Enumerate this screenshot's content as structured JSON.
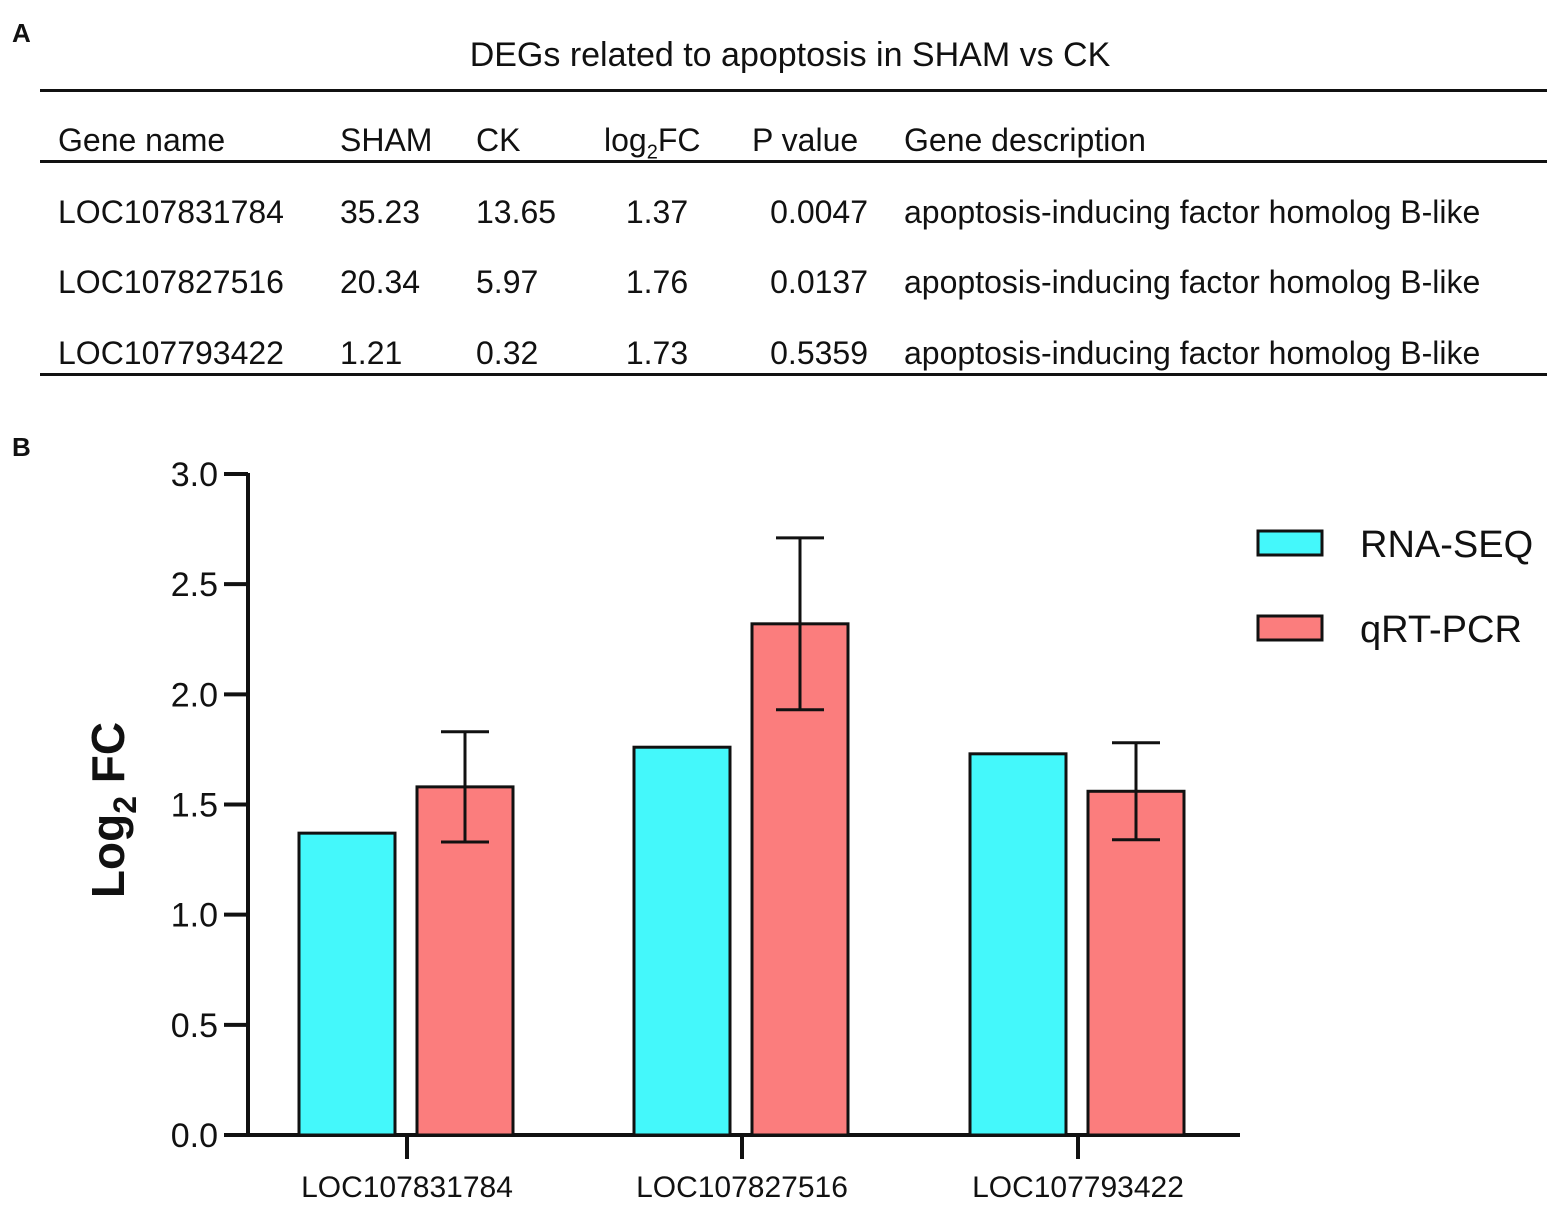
{
  "panel_a": {
    "label": "A",
    "title": "DEGs related to apoptosis in SHAM vs CK",
    "headers": {
      "gene": "Gene name",
      "sham": "SHAM",
      "ck": "CK",
      "fc_prefix": "log",
      "fc_sub": "2",
      "fc_suffix": "FC",
      "pvalue": "P value",
      "desc": "Gene description"
    },
    "rows": [
      {
        "gene": "LOC107831784",
        "sham": "35.23",
        "ck": "13.65",
        "fc": "1.37",
        "p": "0.0047",
        "desc": "apoptosis-inducing factor homolog B-like"
      },
      {
        "gene": "LOC107827516",
        "sham": "20.34",
        "ck": "5.97",
        "fc": "1.76",
        "p": "0.0137",
        "desc": "apoptosis-inducing factor homolog B-like"
      },
      {
        "gene": "LOC107793422",
        "sham": "1.21",
        "ck": "0.32",
        "fc": "1.73",
        "p": "0.5359",
        "desc": "apoptosis-inducing factor homolog B-like"
      }
    ]
  },
  "panel_b": {
    "label": "B"
  },
  "chart_data": {
    "type": "bar",
    "title": "",
    "xlabel": "",
    "ylabel_prefix": "Log",
    "ylabel_sub": "2",
    "ylabel_suffix": " FC",
    "ylim": [
      0,
      3.0
    ],
    "yticks": [
      "0.0",
      "0.5",
      "1.0",
      "1.5",
      "2.0",
      "2.5",
      "3.0"
    ],
    "ytick_values": [
      0,
      0.5,
      1.0,
      1.5,
      2.0,
      2.5,
      3.0
    ],
    "categories": [
      "LOC107831784",
      "LOC107827516",
      "LOC107793422"
    ],
    "series": [
      {
        "name": "RNA-SEQ",
        "color": "#44f8fb",
        "values": [
          1.37,
          1.76,
          1.73
        ],
        "errors": [
          null,
          null,
          null
        ]
      },
      {
        "name": "qRT-PCR",
        "color": "#fb7d7d",
        "values": [
          1.58,
          2.32,
          1.56
        ],
        "errors": [
          0.25,
          0.39,
          0.22
        ]
      }
    ],
    "legend_position": "top-right"
  }
}
